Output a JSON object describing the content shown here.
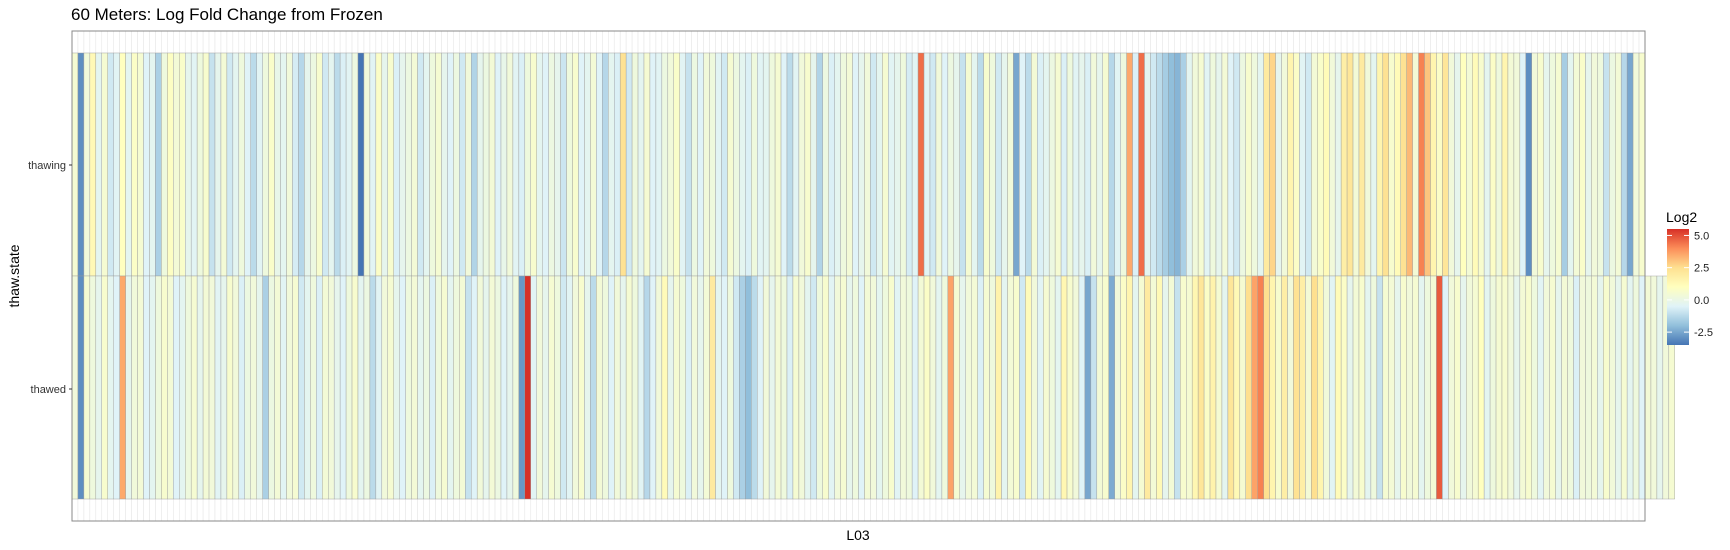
{
  "chart_data": {
    "type": "heatmap",
    "title": "60 Meters: Log Fold Change from Frozen",
    "xlabel": "L03",
    "ylabel": "thaw.state",
    "rows": [
      "thawing",
      "thawed"
    ],
    "legend": {
      "title": "Log2",
      "ticks": [
        "5.0",
        "2.5",
        "0.0",
        "-2.5"
      ],
      "tick_values": [
        5.0,
        2.5,
        0.0,
        -2.5
      ],
      "range": [
        -3.5,
        5.5
      ],
      "placement": "right"
    },
    "colors": {
      "scale": [
        "#4575b4",
        "#91bfdb",
        "#e0f3f8",
        "#ffffbf",
        "#fee090",
        "#fc8d59",
        "#d73027"
      ],
      "panel_border": "#888888",
      "cell_border": "#999999"
    },
    "thawing": [
      0.5,
      -3.0,
      0.3,
      1.3,
      -0.3,
      0.5,
      -0.8,
      -0.4,
      1.0,
      -0.3,
      0.8,
      0.5,
      -0.5,
      -0.3,
      -1.5,
      0.2,
      0.9,
      0.4,
      0.7,
      -0.2,
      -0.4,
      0.2,
      0.6,
      -1.0,
      -0.2,
      0.4,
      -0.8,
      -0.3,
      0.2,
      -0.5,
      -1.2,
      -0.4,
      0.2,
      0.7,
      -0.1,
      -0.3,
      0.3,
      -0.7,
      -1.3,
      -0.2,
      0.1,
      0.6,
      -0.8,
      -0.3,
      -1.2,
      -0.6,
      -0.4,
      0.1,
      -3.5,
      0.3,
      -0.4,
      0.8,
      -0.2,
      0.6,
      -0.6,
      -0.2,
      0.1,
      0.4,
      -0.8,
      -0.3,
      0.2,
      0.5,
      -0.2,
      -0.5,
      0.1,
      -0.8,
      0.3,
      -1.4,
      -0.2,
      0.1,
      0.4,
      -0.5,
      -0.1,
      0.3,
      -0.4,
      -0.6,
      0.2,
      0.6,
      -0.3,
      -0.5,
      0.1,
      -0.2,
      -0.9,
      0.2,
      0.6,
      -0.5,
      -0.3,
      0.4,
      -0.5,
      -1.3,
      -0.3,
      -0.6,
      2.4,
      -0.8,
      0.2,
      -0.3,
      0.5,
      -0.5,
      -0.4,
      0.1,
      0.3,
      0.7,
      -0.4,
      -1.0,
      0.1,
      -0.5,
      0.3,
      0.2,
      -0.4,
      -0.8,
      0.5,
      0.1,
      -0.3,
      -0.6,
      0.2,
      -0.4,
      -0.3,
      0.2,
      0.5,
      -0.5,
      -1.2,
      -0.4,
      0.3,
      0.6,
      -0.2,
      -1.4,
      0.1,
      -0.6,
      -0.3,
      0.2,
      0.4,
      -0.5,
      -0.2,
      0.3,
      -0.8,
      -0.3,
      0.5,
      -0.4,
      -0.2,
      0.2,
      -0.7,
      -0.4,
      4.5,
      -0.4,
      -0.8,
      0.3,
      -0.5,
      0.1,
      -0.2,
      -1.0,
      0.5,
      -0.3,
      -1.2,
      0.6,
      0.2,
      -0.8,
      -0.2,
      0.3,
      -2.5,
      -0.5,
      -1.2,
      0.4,
      -0.6,
      -0.3,
      0.1,
      0.5,
      -0.6,
      0.2,
      -0.4,
      -0.2,
      -0.6,
      0.3,
      -0.2,
      0.5,
      -1.3,
      -0.4,
      0.2,
      3.5,
      -0.6,
      4.5,
      -0.3,
      -0.8,
      -1.2,
      -1.6,
      -2.0,
      -2.2,
      -1.5,
      -0.3,
      0.3,
      0.5,
      -0.4,
      0.2,
      -0.2,
      0.4,
      -0.5,
      -0.8,
      0.1,
      0.6,
      0.2,
      -0.3,
      2.0,
      2.7,
      -0.2,
      0.3,
      1.5,
      0.8,
      -0.4,
      -0.8,
      0.4,
      0.7,
      1.2,
      0.3,
      -0.2,
      1.8,
      2.2,
      0.4,
      2.0,
      0.3,
      -0.3,
      1.5,
      2.4,
      0.6,
      1.2,
      2.4,
      3.2,
      0.4,
      4.2,
      3.0,
      1.5,
      0.8,
      2.2,
      0.3,
      -0.2,
      1.0,
      0.4,
      1.2,
      0.6,
      -0.3,
      0.8,
      0.2,
      1.5,
      0.4,
      0.3,
      -0.5,
      -3.0,
      0.3,
      0.6,
      -0.2,
      0.2,
      0.5,
      -1.6,
      -0.3,
      0.4,
      0.7,
      -0.2,
      0.3,
      0.2,
      -1.0,
      0.1,
      0.4,
      -1.3,
      -2.5,
      0.3,
      0.6
    ],
    "thawed": [
      0.3,
      -3.0,
      0.5,
      0.2,
      -0.2,
      0.6,
      -0.3,
      -0.5,
      3.5,
      -0.2,
      0.3,
      0.4,
      -0.5,
      -0.3,
      0.2,
      0.6,
      0.4,
      -0.5,
      -0.3,
      0.2,
      0.5,
      -0.2,
      0.4,
      0.3,
      -0.4,
      -0.2,
      0.6,
      0.3,
      -0.6,
      0.1,
      0.3,
      -0.2,
      -1.5,
      0.1,
      0.4,
      -0.4,
      0.3,
      0.5,
      -0.8,
      -0.3,
      0.2,
      -0.6,
      0.4,
      0.3,
      -0.2,
      -0.5,
      0.2,
      0.6,
      -0.3,
      0.1,
      -1.2,
      -0.4,
      0.3,
      0.5,
      -0.2,
      -0.5,
      0.2,
      0.4,
      -0.3,
      0.1,
      -0.6,
      0.2,
      0.5,
      -0.3,
      0.2,
      0.4,
      -1.0,
      -0.5,
      0.3,
      -0.2,
      0.4,
      0.1,
      -0.5,
      -0.2,
      0.2,
      -2.8,
      5.5,
      -0.4,
      0.3,
      -0.2,
      0.5,
      0.2,
      -0.8,
      -0.4,
      0.3,
      0.6,
      -0.2,
      -1.2,
      0.4,
      0.2,
      -0.5,
      0.3,
      -0.2,
      0.5,
      0.2,
      -0.4,
      -1.3,
      -0.5,
      0.3,
      1.2,
      -0.2,
      0.5,
      0.2,
      -0.6,
      0.3,
      -0.2,
      0.4,
      2.0,
      -0.3,
      -0.5,
      0.2,
      -0.8,
      -1.5,
      -2.0,
      -1.2,
      -0.5,
      0.3,
      -0.2,
      0.4,
      0.2,
      -0.6,
      0.5,
      0.3,
      -0.3,
      -0.8,
      0.2,
      0.6,
      -0.4,
      0.3,
      0.5,
      -0.2,
      0.2,
      -0.5,
      0.4,
      0.3,
      -0.3,
      0.2,
      0.6,
      -0.4,
      0.3,
      0.2,
      -0.5,
      0.4,
      0.8,
      0.3,
      -0.3,
      0.2,
      3.6,
      0.5,
      -0.2,
      0.3,
      0.4,
      -0.6,
      0.5,
      0.2,
      1.6,
      -0.3,
      0.4,
      0.6,
      -0.8,
      1.2,
      0.3,
      -0.4,
      0.5,
      0.2,
      -0.3,
      1.4,
      0.6,
      0.3,
      -0.5,
      -2.5,
      -1.0,
      0.4,
      0.6,
      -2.4,
      0.3,
      0.8,
      1.5,
      -0.3,
      0.5,
      2.0,
      0.4,
      1.3,
      -0.2,
      0.4,
      -1.0,
      0.6,
      0.5,
      1.4,
      2.2,
      0.8,
      1.6,
      0.5,
      -0.3,
      2.2,
      1.3,
      0.5,
      2.5,
      3.6,
      4.2,
      2.5,
      1.5,
      0.6,
      1.8,
      0.3,
      2.4,
      1.8,
      0.4,
      2.5,
      1.5,
      0.3,
      -0.4,
      1.2,
      0.8,
      -0.2,
      0.4,
      0.6,
      -0.3,
      0.2,
      -1.0,
      0.5,
      0.4,
      -0.2,
      0.6,
      0.3,
      0.5,
      -0.3,
      0.2,
      0.4,
      4.8,
      -0.5,
      0.3,
      0.6,
      -0.2,
      0.3,
      0.5,
      1.0,
      -0.3,
      0.2,
      0.5,
      0.6,
      0.3,
      -0.2,
      0.4,
      0.6,
      0.2,
      -0.4,
      0.3,
      0.5,
      -0.2,
      0.4,
      0.2,
      -0.6,
      0.3,
      0.2,
      0.4,
      -0.2,
      0.6,
      0.3,
      -0.2,
      0.5,
      -0.3,
      0.2,
      -0.5,
      0.4,
      0.3,
      -0.2,
      0.3,
      0.5
    ]
  }
}
